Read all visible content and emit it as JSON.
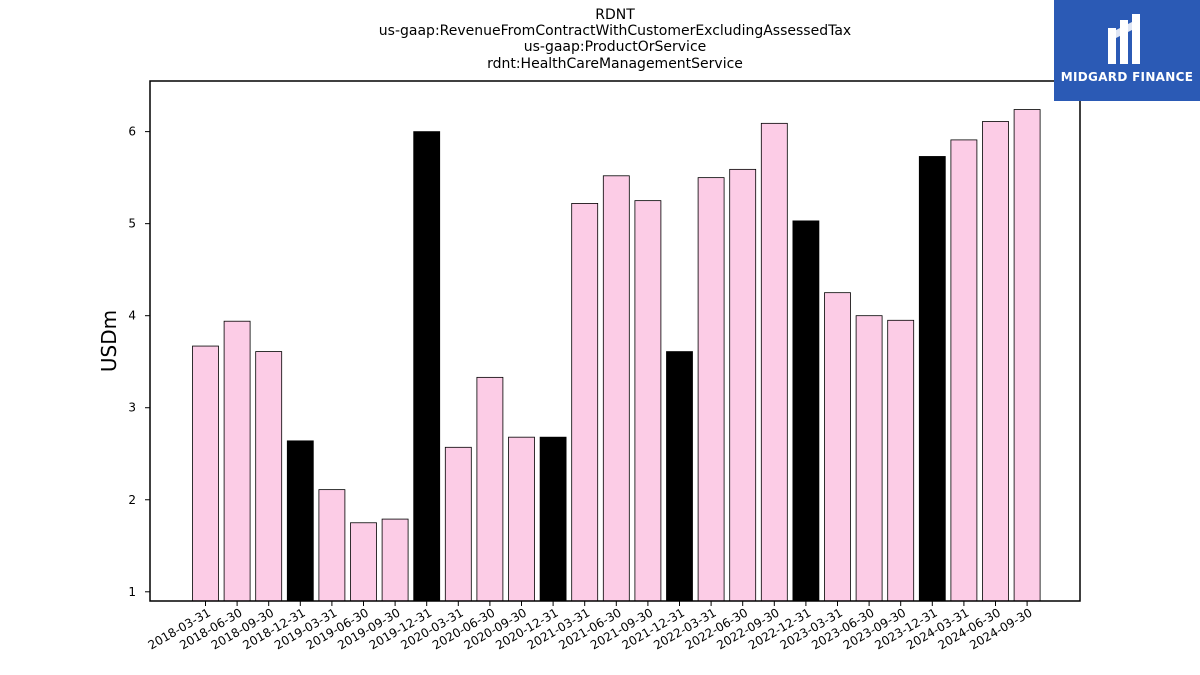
{
  "chart_data": {
    "type": "bar",
    "title_lines": [
      "RDNT",
      "us-gaap:RevenueFromContractWithCustomerExcludingAssessedTax",
      "us-gaap:ProductOrService",
      "rdnt:HealthCareManagementService"
    ],
    "ylabel": "USDm",
    "xlabel": "",
    "ylim": [
      0.9,
      6.55
    ],
    "yticks": [
      1,
      2,
      3,
      4,
      5,
      6
    ],
    "grid": false,
    "categories": [
      "2018-03-31",
      "2018-06-30",
      "2018-09-30",
      "2018-12-31",
      "2019-03-31",
      "2019-06-30",
      "2019-09-30",
      "2019-12-31",
      "2020-03-31",
      "2020-06-30",
      "2020-09-30",
      "2020-12-31",
      "2021-03-31",
      "2021-06-30",
      "2021-09-30",
      "2021-12-31",
      "2022-03-31",
      "2022-06-30",
      "2022-09-30",
      "2022-12-31",
      "2023-03-31",
      "2023-06-30",
      "2023-09-30",
      "2023-12-31",
      "2024-03-31",
      "2024-06-30",
      "2024-09-30"
    ],
    "values": [
      3.67,
      3.94,
      3.61,
      2.64,
      2.11,
      1.75,
      1.79,
      6.0,
      2.57,
      3.33,
      2.68,
      2.68,
      5.22,
      5.52,
      5.25,
      3.61,
      5.5,
      5.59,
      6.09,
      5.03,
      4.25,
      4.0,
      3.95,
      5.73,
      5.91,
      6.11,
      6.24
    ],
    "colors": {
      "quarter": "#fccce6",
      "year_end": "#000000",
      "edge": "#000000"
    }
  },
  "logo": {
    "text": "MIDGARD FINANCE",
    "bg": "#2b5ab5"
  }
}
